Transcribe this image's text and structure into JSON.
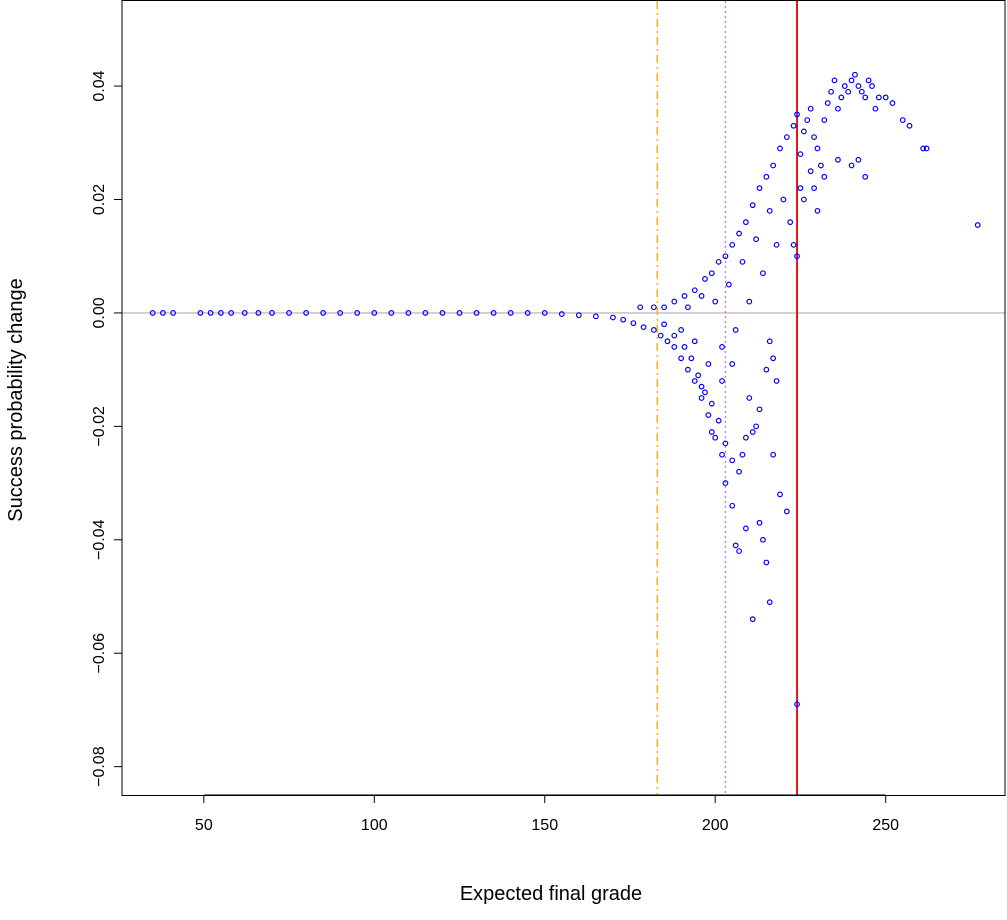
{
  "chart_data": {
    "type": "scatter",
    "xlabel": "Expected final grade",
    "ylabel": "Success probability change",
    "xlim": [
      26,
      285
    ],
    "ylim": [
      -0.085,
      0.055
    ],
    "xticks": [
      50,
      100,
      150,
      200,
      250
    ],
    "yticks": [
      -0.08,
      -0.06,
      -0.04,
      -0.02,
      0.0,
      0.02,
      0.04
    ],
    "ytick_labels": [
      "−0.08",
      "−0.06",
      "−0.04",
      "−0.02",
      "0.00",
      "0.02",
      "0.04"
    ],
    "grid": false,
    "reference_lines": [
      {
        "orientation": "horizontal",
        "value": 0.0,
        "color": "#bebebe",
        "style": "solid"
      },
      {
        "orientation": "vertical",
        "value": 183,
        "color": "#ffa500",
        "style": "dashdot"
      },
      {
        "orientation": "vertical",
        "value": 203,
        "color": "#d070e0",
        "style": "dotted"
      },
      {
        "orientation": "vertical",
        "value": 224,
        "color": "#e00000",
        "style": "solid"
      }
    ],
    "point_color": "#0000ff",
    "series": [
      {
        "points": [
          [
            35,
            0.0
          ],
          [
            38,
            0.0
          ],
          [
            41,
            0.0
          ],
          [
            49,
            0.0
          ],
          [
            52,
            0.0
          ],
          [
            55,
            0.0
          ],
          [
            58,
            0.0
          ],
          [
            62,
            0.0
          ],
          [
            66,
            0.0
          ],
          [
            70,
            0.0
          ],
          [
            75,
            0.0
          ],
          [
            80,
            0.0
          ],
          [
            85,
            0.0
          ],
          [
            90,
            0.0
          ],
          [
            95,
            0.0
          ],
          [
            100,
            0.0
          ],
          [
            105,
            0.0
          ],
          [
            110,
            0.0
          ],
          [
            115,
            0.0
          ],
          [
            120,
            0.0
          ],
          [
            125,
            0.0
          ],
          [
            130,
            0.0
          ],
          [
            135,
            0.0
          ],
          [
            140,
            0.0
          ],
          [
            145,
            0.0
          ],
          [
            150,
            0.0
          ],
          [
            155,
            -0.0002
          ],
          [
            160,
            -0.0004
          ],
          [
            165,
            -0.0006
          ],
          [
            170,
            -0.0008
          ],
          [
            173,
            -0.0012
          ],
          [
            176,
            -0.0018
          ],
          [
            179,
            -0.0025
          ],
          [
            182,
            -0.003
          ],
          [
            184,
            -0.004
          ],
          [
            186,
            -0.005
          ],
          [
            188,
            -0.006
          ],
          [
            190,
            -0.008
          ],
          [
            192,
            -0.01
          ],
          [
            194,
            -0.012
          ],
          [
            196,
            -0.015
          ],
          [
            198,
            -0.018
          ],
          [
            200,
            -0.022
          ],
          [
            202,
            -0.025
          ],
          [
            203,
            -0.03
          ],
          [
            205,
            -0.034
          ],
          [
            178,
            0.001
          ],
          [
            182,
            0.001
          ],
          [
            185,
            0.001
          ],
          [
            188,
            0.002
          ],
          [
            191,
            0.003
          ],
          [
            194,
            0.004
          ],
          [
            197,
            0.006
          ],
          [
            199,
            0.007
          ],
          [
            201,
            0.009
          ],
          [
            203,
            0.01
          ],
          [
            205,
            0.012
          ],
          [
            207,
            0.014
          ],
          [
            209,
            0.016
          ],
          [
            211,
            0.019
          ],
          [
            213,
            0.022
          ],
          [
            215,
            0.024
          ],
          [
            217,
            0.026
          ],
          [
            219,
            0.029
          ],
          [
            221,
            0.031
          ],
          [
            223,
            0.033
          ],
          [
            224,
            0.035
          ],
          [
            185,
            -0.002
          ],
          [
            188,
            -0.004
          ],
          [
            191,
            -0.006
          ],
          [
            193,
            -0.008
          ],
          [
            195,
            -0.011
          ],
          [
            197,
            -0.014
          ],
          [
            199,
            -0.016
          ],
          [
            201,
            -0.019
          ],
          [
            203,
            -0.023
          ],
          [
            205,
            -0.026
          ],
          [
            207,
            -0.028
          ],
          [
            208,
            -0.025
          ],
          [
            209,
            -0.022
          ],
          [
            210,
            -0.015
          ],
          [
            211,
            -0.021
          ],
          [
            212,
            -0.02
          ],
          [
            213,
            -0.017
          ],
          [
            215,
            -0.01
          ],
          [
            216,
            -0.005
          ],
          [
            217,
            -0.008
          ],
          [
            218,
            -0.012
          ],
          [
            190,
            -0.003
          ],
          [
            192,
            0.001
          ],
          [
            194,
            -0.005
          ],
          [
            196,
            0.003
          ],
          [
            198,
            -0.009
          ],
          [
            200,
            0.002
          ],
          [
            202,
            -0.006
          ],
          [
            204,
            0.005
          ],
          [
            206,
            -0.003
          ],
          [
            208,
            0.009
          ],
          [
            210,
            0.002
          ],
          [
            212,
            0.013
          ],
          [
            214,
            0.007
          ],
          [
            216,
            0.018
          ],
          [
            218,
            0.012
          ],
          [
            220,
            0.02
          ],
          [
            222,
            0.016
          ],
          [
            223,
            0.012
          ],
          [
            224,
            0.01
          ],
          [
            196,
            -0.013
          ],
          [
            199,
            -0.021
          ],
          [
            202,
            -0.012
          ],
          [
            205,
            -0.009
          ],
          [
            206,
            -0.041
          ],
          [
            207,
            -0.042
          ],
          [
            209,
            -0.038
          ],
          [
            211,
            -0.054
          ],
          [
            213,
            -0.037
          ],
          [
            214,
            -0.04
          ],
          [
            215,
            -0.044
          ],
          [
            216,
            -0.051
          ],
          [
            217,
            -0.025
          ],
          [
            219,
            -0.032
          ],
          [
            221,
            -0.035
          ],
          [
            224,
            -0.069
          ],
          [
            225,
            0.028
          ],
          [
            226,
            0.032
          ],
          [
            227,
            0.034
          ],
          [
            228,
            0.036
          ],
          [
            229,
            0.031
          ],
          [
            230,
            0.029
          ],
          [
            231,
            0.026
          ],
          [
            232,
            0.034
          ],
          [
            233,
            0.037
          ],
          [
            234,
            0.039
          ],
          [
            235,
            0.041
          ],
          [
            236,
            0.036
          ],
          [
            237,
            0.038
          ],
          [
            238,
            0.04
          ],
          [
            239,
            0.039
          ],
          [
            240,
            0.041
          ],
          [
            241,
            0.042
          ],
          [
            242,
            0.04
          ],
          [
            243,
            0.039
          ],
          [
            244,
            0.038
          ],
          [
            245,
            0.041
          ],
          [
            246,
            0.04
          ],
          [
            247,
            0.036
          ],
          [
            248,
            0.038
          ],
          [
            250,
            0.038
          ],
          [
            252,
            0.037
          ],
          [
            255,
            0.034
          ],
          [
            257,
            0.033
          ],
          [
            261,
            0.029
          ],
          [
            262,
            0.029
          ],
          [
            225,
            0.022
          ],
          [
            226,
            0.02
          ],
          [
            228,
            0.025
          ],
          [
            229,
            0.022
          ],
          [
            230,
            0.018
          ],
          [
            232,
            0.024
          ],
          [
            236,
            0.027
          ],
          [
            240,
            0.026
          ],
          [
            242,
            0.027
          ],
          [
            244,
            0.024
          ],
          [
            277,
            0.0155
          ]
        ]
      }
    ]
  }
}
